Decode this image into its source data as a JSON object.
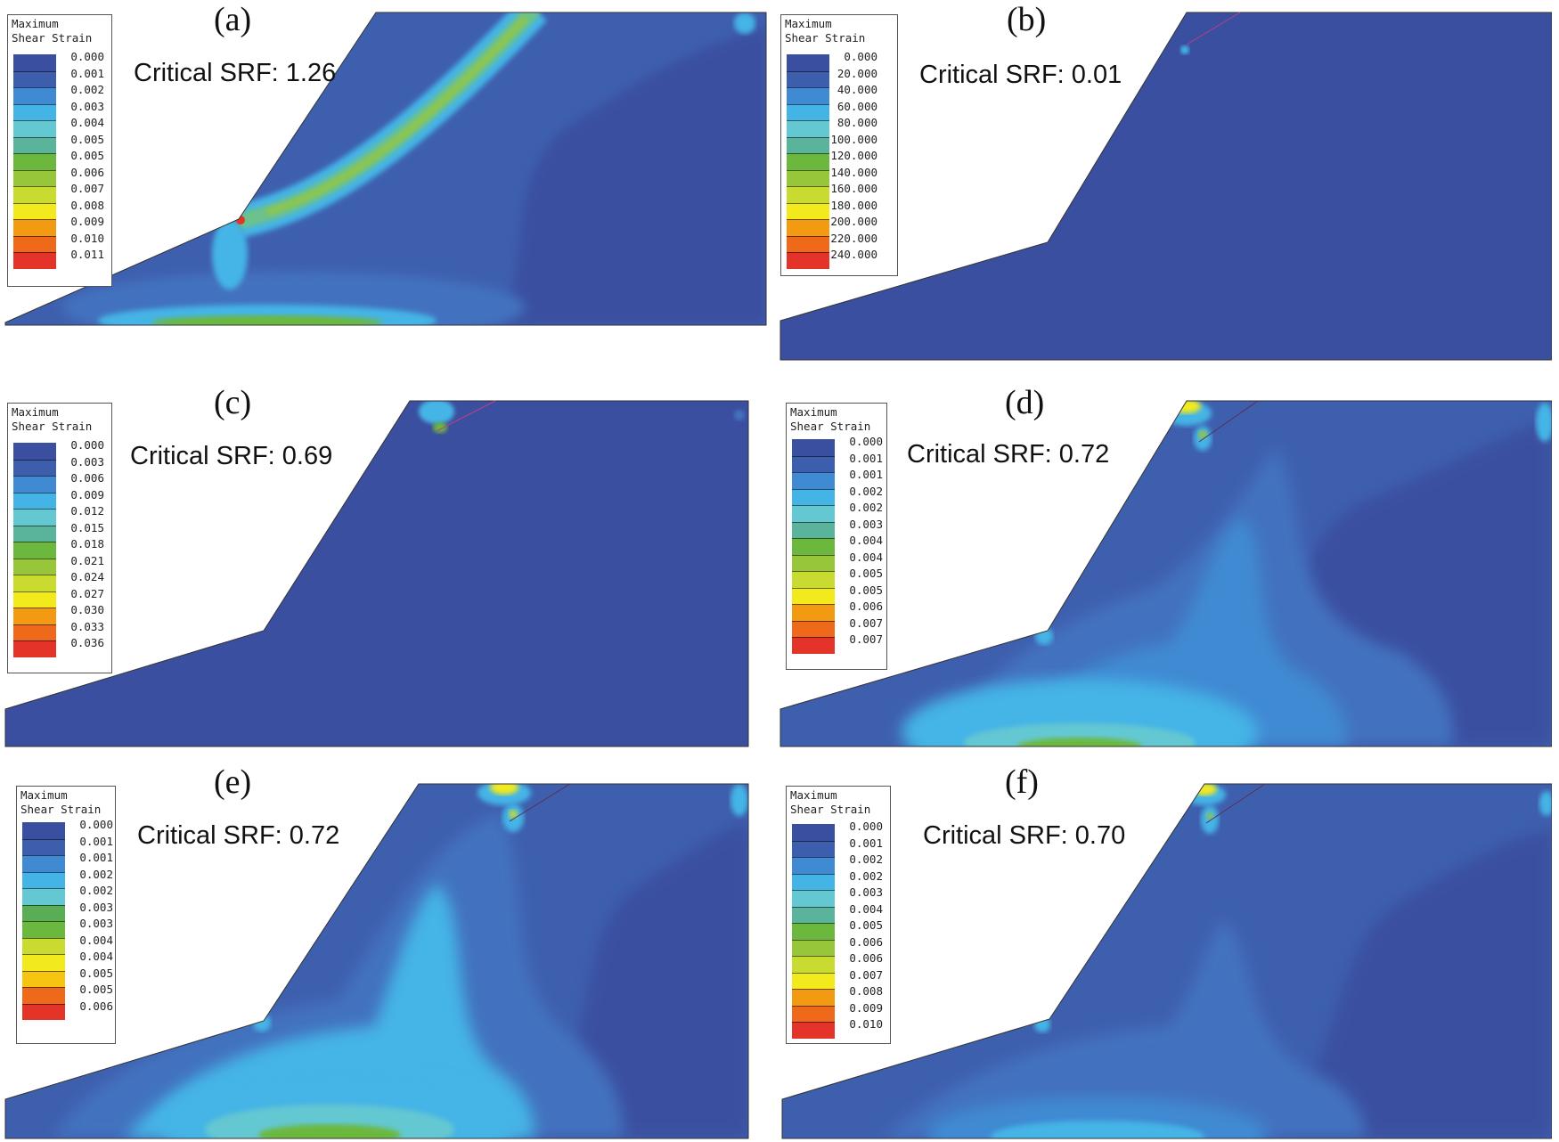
{
  "figure": {
    "panels": [
      {
        "id": "a",
        "label": "(a)",
        "srf_text": "Critical SRF: 1.26",
        "legend": {
          "title": "Maximum\nShear Strain",
          "values": [
            "0.000",
            "0.001",
            "0.002",
            "0.003",
            "0.004",
            "0.005",
            "0.005",
            "0.006",
            "0.007",
            "0.008",
            "0.009",
            "0.010",
            "0.011"
          ]
        }
      },
      {
        "id": "b",
        "label": "(b)",
        "srf_text": "Critical SRF: 0.01",
        "legend": {
          "title": "Maximum\nShear Strain",
          "values": [
            "0.000",
            "20.000",
            "40.000",
            "60.000",
            "80.000",
            "100.000",
            "120.000",
            "140.000",
            "160.000",
            "180.000",
            "200.000",
            "220.000",
            "240.000"
          ]
        }
      },
      {
        "id": "c",
        "label": "(c)",
        "srf_text": "Critical SRF: 0.69",
        "legend": {
          "title": "Maximum\nShear Strain",
          "values": [
            "0.000",
            "0.003",
            "0.006",
            "0.009",
            "0.012",
            "0.015",
            "0.018",
            "0.021",
            "0.024",
            "0.027",
            "0.030",
            "0.033",
            "0.036"
          ]
        }
      },
      {
        "id": "d",
        "label": "(d)",
        "srf_text": "Critical SRF: 0.72",
        "legend": {
          "title": "Maximum\nShear Strain",
          "values": [
            "0.000",
            "0.001",
            "0.001",
            "0.002",
            "0.002",
            "0.003",
            "0.004",
            "0.004",
            "0.005",
            "0.005",
            "0.006",
            "0.007",
            "0.007"
          ]
        }
      },
      {
        "id": "e",
        "label": "(e)",
        "srf_text": "Critical SRF: 0.72",
        "legend": {
          "title": "Maximum\nShear Strain",
          "values": [
            "0.000",
            "0.001",
            "0.001",
            "0.002",
            "0.002",
            "0.003",
            "0.003",
            "0.004",
            "0.004",
            "0.005",
            "0.005",
            "0.006"
          ]
        }
      },
      {
        "id": "f",
        "label": "(f)",
        "srf_text": "Critical SRF: 0.70",
        "legend": {
          "title": "Maximum\nShear Strain",
          "values": [
            "0.000",
            "0.001",
            "0.002",
            "0.002",
            "0.003",
            "0.004",
            "0.005",
            "0.006",
            "0.006",
            "0.007",
            "0.008",
            "0.009",
            "0.010"
          ]
        }
      }
    ],
    "colormap": [
      "#3a4fa0",
      "#3d5ead",
      "#4272bf",
      "#3f8ad3",
      "#44b4e6",
      "#63c8d2",
      "#5ab39b",
      "#58ad55",
      "#6cb83e",
      "#98c63a",
      "#c9da30",
      "#f2ea1c",
      "#f6c512",
      "#f29a12",
      "#ee6a1a",
      "#e4342a"
    ]
  }
}
